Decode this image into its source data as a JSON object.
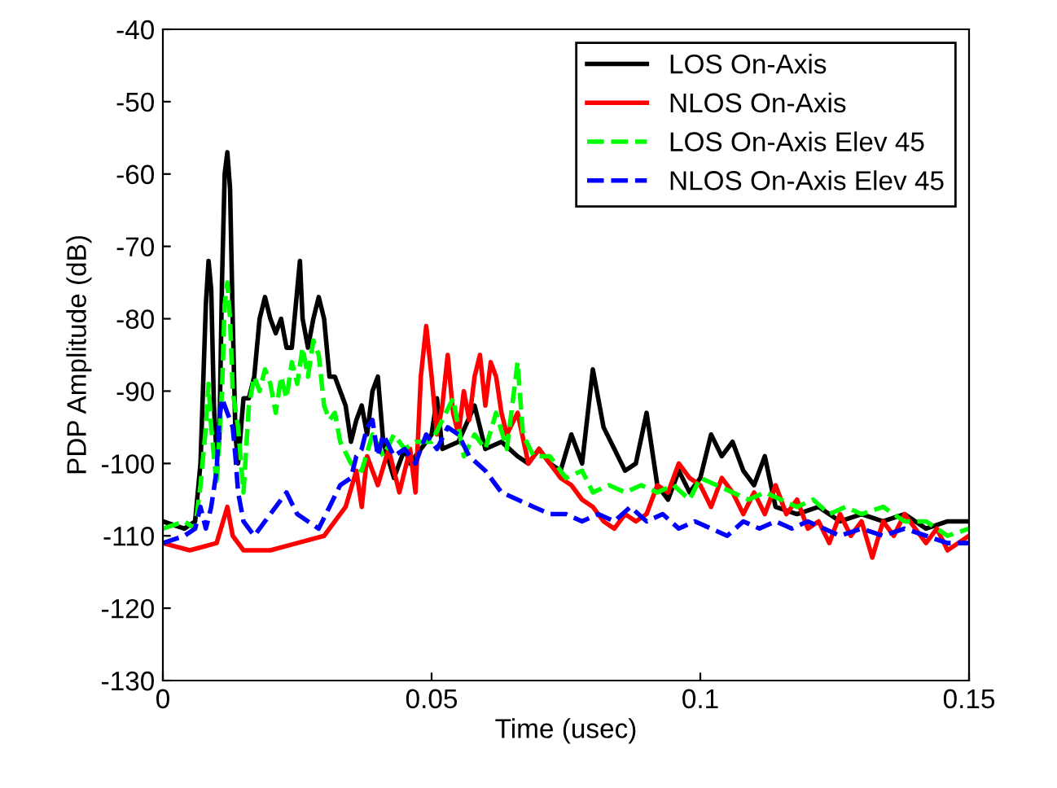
{
  "chart_data": {
    "type": "line",
    "xlabel": "Time (usec)",
    "ylabel": "PDP Amplitude (dB)",
    "xlim": [
      0,
      0.15
    ],
    "ylim": [
      -130,
      -40
    ],
    "xticks": [
      0,
      0.05,
      0.1,
      0.15
    ],
    "yticks": [
      -130,
      -120,
      -110,
      -100,
      -90,
      -80,
      -70,
      -60,
      -50,
      -40
    ],
    "grid": false,
    "legend": "top right",
    "marker": "none",
    "series": [
      {
        "name": "LOS On-Axis",
        "color": "#000000",
        "line_style": "solid",
        "x": [
          0,
          0.004,
          0.006,
          0.007,
          0.008,
          0.0085,
          0.009,
          0.0095,
          0.01,
          0.0105,
          0.011,
          0.0115,
          0.012,
          0.0125,
          0.013,
          0.0135,
          0.014,
          0.015,
          0.016,
          0.017,
          0.018,
          0.019,
          0.02,
          0.021,
          0.022,
          0.023,
          0.024,
          0.025,
          0.0255,
          0.026,
          0.027,
          0.028,
          0.029,
          0.03,
          0.031,
          0.032,
          0.034,
          0.035,
          0.036,
          0.037,
          0.038,
          0.039,
          0.04,
          0.041,
          0.043,
          0.045,
          0.046,
          0.048,
          0.05,
          0.051,
          0.052,
          0.055,
          0.058,
          0.06,
          0.063,
          0.066,
          0.068,
          0.07,
          0.072,
          0.074,
          0.076,
          0.078,
          0.08,
          0.082,
          0.084,
          0.086,
          0.088,
          0.09,
          0.092,
          0.094,
          0.096,
          0.098,
          0.1,
          0.102,
          0.104,
          0.106,
          0.108,
          0.11,
          0.112,
          0.114,
          0.118,
          0.122,
          0.126,
          0.13,
          0.134,
          0.138,
          0.142,
          0.146,
          0.15
        ],
        "values": [
          -108,
          -109,
          -108,
          -100,
          -78,
          -72,
          -76,
          -92,
          -99,
          -97,
          -75,
          -60,
          -57,
          -62,
          -80,
          -96,
          -100,
          -91,
          -91,
          -88,
          -80,
          -77,
          -80,
          -82,
          -80,
          -84,
          -84,
          -76,
          -72,
          -80,
          -84,
          -80,
          -77,
          -80,
          -88,
          -88,
          -92,
          -97,
          -94,
          -92,
          -96,
          -90,
          -88,
          -97,
          -102,
          -98,
          -100,
          -98,
          -96,
          -91,
          -98,
          -97,
          -92,
          -98,
          -97,
          -99,
          -100,
          -98,
          -100,
          -101,
          -96,
          -100,
          -87,
          -95,
          -98,
          -101,
          -100,
          -93,
          -103,
          -105,
          -101,
          -104,
          -102,
          -96,
          -99,
          -97,
          -101,
          -103,
          -99,
          -106,
          -107,
          -106,
          -108,
          -107,
          -108,
          -107,
          -109,
          -108,
          -108
        ]
      },
      {
        "name": "NLOS On-Axis",
        "color": "#ff0000",
        "line_style": "solid",
        "x": [
          0,
          0.005,
          0.01,
          0.012,
          0.013,
          0.015,
          0.02,
          0.025,
          0.03,
          0.032,
          0.034,
          0.036,
          0.037,
          0.038,
          0.04,
          0.042,
          0.044,
          0.046,
          0.047,
          0.048,
          0.049,
          0.05,
          0.051,
          0.052,
          0.053,
          0.054,
          0.055,
          0.056,
          0.057,
          0.058,
          0.059,
          0.06,
          0.061,
          0.062,
          0.063,
          0.064,
          0.066,
          0.068,
          0.07,
          0.072,
          0.074,
          0.076,
          0.078,
          0.08,
          0.082,
          0.084,
          0.086,
          0.088,
          0.09,
          0.092,
          0.094,
          0.096,
          0.098,
          0.1,
          0.102,
          0.104,
          0.106,
          0.108,
          0.11,
          0.112,
          0.114,
          0.116,
          0.118,
          0.12,
          0.122,
          0.124,
          0.126,
          0.128,
          0.13,
          0.132,
          0.134,
          0.136,
          0.138,
          0.14,
          0.142,
          0.144,
          0.146,
          0.15
        ],
        "values": [
          -111,
          -112,
          -111,
          -106,
          -110,
          -112,
          -112,
          -111,
          -110,
          -108,
          -106,
          -101,
          -106,
          -99,
          -103,
          -98,
          -104,
          -98,
          -104,
          -88,
          -81,
          -88,
          -96,
          -92,
          -85,
          -93,
          -96,
          -90,
          -94,
          -88,
          -85,
          -92,
          -86,
          -88,
          -93,
          -96,
          -93,
          -100,
          -98,
          -100,
          -102,
          -103,
          -105,
          -106,
          -108,
          -109,
          -107,
          -108,
          -107,
          -103,
          -104,
          -100,
          -102,
          -103,
          -106,
          -102,
          -104,
          -107,
          -104,
          -107,
          -103,
          -107,
          -105,
          -109,
          -108,
          -111,
          -107,
          -110,
          -108,
          -113,
          -108,
          -110,
          -107,
          -109,
          -111,
          -109,
          -112,
          -110
        ]
      },
      {
        "name": "LOS On-Axis Elev 45",
        "color": "#00ff00",
        "line_style": "dashed",
        "x": [
          0,
          0.004,
          0.006,
          0.007,
          0.008,
          0.0085,
          0.009,
          0.0095,
          0.01,
          0.011,
          0.0115,
          0.012,
          0.0125,
          0.013,
          0.014,
          0.015,
          0.016,
          0.017,
          0.018,
          0.019,
          0.02,
          0.021,
          0.022,
          0.023,
          0.024,
          0.025,
          0.026,
          0.027,
          0.028,
          0.029,
          0.03,
          0.031,
          0.032,
          0.033,
          0.035,
          0.037,
          0.039,
          0.041,
          0.043,
          0.045,
          0.047,
          0.05,
          0.052,
          0.054,
          0.056,
          0.058,
          0.06,
          0.062,
          0.064,
          0.066,
          0.067,
          0.069,
          0.072,
          0.075,
          0.078,
          0.08,
          0.083,
          0.086,
          0.089,
          0.092,
          0.095,
          0.098,
          0.1,
          0.103,
          0.106,
          0.109,
          0.112,
          0.115,
          0.118,
          0.121,
          0.124,
          0.127,
          0.13,
          0.134,
          0.138,
          0.142,
          0.146,
          0.15
        ],
        "values": [
          -109,
          -108,
          -109,
          -103,
          -95,
          -89,
          -95,
          -99,
          -103,
          -90,
          -78,
          -75,
          -80,
          -90,
          -95,
          -104,
          -92,
          -88,
          -90,
          -87,
          -89,
          -93,
          -88,
          -91,
          -86,
          -89,
          -84,
          -88,
          -83,
          -85,
          -92,
          -94,
          -93,
          -97,
          -100,
          -101,
          -96,
          -99,
          -96,
          -98,
          -97,
          -97,
          -94,
          -91,
          -99,
          -96,
          -98,
          -93,
          -98,
          -86,
          -96,
          -99,
          -99,
          -102,
          -101,
          -104,
          -103,
          -104,
          -103,
          -104,
          -103,
          -105,
          -102,
          -103,
          -104,
          -105,
          -104,
          -105,
          -106,
          -105,
          -107,
          -106,
          -107,
          -106,
          -108,
          -108,
          -110,
          -109
        ]
      },
      {
        "name": "NLOS On-Axis Elev 45",
        "color": "#0000ff",
        "line_style": "dashed",
        "x": [
          0,
          0.004,
          0.006,
          0.007,
          0.008,
          0.009,
          0.01,
          0.0105,
          0.011,
          0.012,
          0.013,
          0.0135,
          0.014,
          0.015,
          0.017,
          0.019,
          0.021,
          0.023,
          0.025,
          0.027,
          0.029,
          0.031,
          0.033,
          0.035,
          0.036,
          0.037,
          0.038,
          0.039,
          0.04,
          0.041,
          0.043,
          0.045,
          0.047,
          0.049,
          0.051,
          0.053,
          0.055,
          0.057,
          0.06,
          0.063,
          0.066,
          0.069,
          0.072,
          0.075,
          0.078,
          0.081,
          0.084,
          0.087,
          0.09,
          0.093,
          0.096,
          0.099,
          0.102,
          0.105,
          0.108,
          0.111,
          0.114,
          0.117,
          0.12,
          0.123,
          0.126,
          0.13,
          0.134,
          0.138,
          0.142,
          0.146,
          0.15
        ],
        "values": [
          -111,
          -110,
          -109,
          -106,
          -109,
          -106,
          -101,
          -94,
          -91,
          -93,
          -95,
          -99,
          -104,
          -108,
          -110,
          -108,
          -106,
          -104,
          -107,
          -108,
          -109,
          -106,
          -103,
          -102,
          -99,
          -98,
          -95,
          -94,
          -99,
          -96,
          -99,
          -98,
          -100,
          -96,
          -98,
          -95,
          -96,
          -99,
          -101,
          -104,
          -105,
          -106,
          -107,
          -107,
          -108,
          -107,
          -108,
          -106,
          -108,
          -107,
          -109,
          -108,
          -109,
          -110,
          -108,
          -109,
          -108,
          -109,
          -108,
          -109,
          -110,
          -109,
          -110,
          -109,
          -110,
          -111,
          -111
        ]
      }
    ]
  }
}
